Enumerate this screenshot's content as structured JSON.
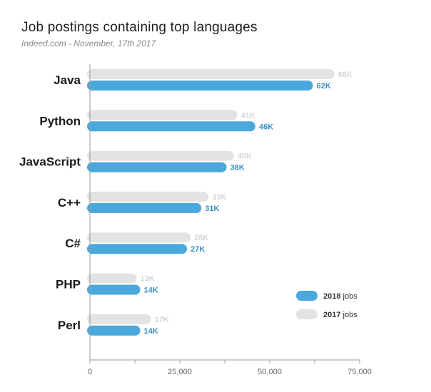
{
  "chart_data": {
    "type": "bar",
    "orientation": "horizontal",
    "title": "Job postings containing top languages",
    "subtitle": "Indeed.com - November, 17th 2017",
    "categories": [
      "Java",
      "Python",
      "JavaScript",
      "C++",
      "C#",
      "PHP",
      "Perl"
    ],
    "series": [
      {
        "name": "2017",
        "suffix": "jobs",
        "color": "#e3e3e3",
        "values": [
          68000,
          41000,
          40000,
          33000,
          28000,
          13000,
          17000
        ],
        "labels": [
          "68K",
          "41K",
          "40K",
          "33K",
          "28K",
          "13K",
          "17K"
        ]
      },
      {
        "name": "2018",
        "suffix": "jobs",
        "color": "#4aa8dc",
        "values": [
          62000,
          46000,
          38000,
          31000,
          27000,
          14000,
          14000
        ],
        "labels": [
          "62K",
          "46K",
          "38K",
          "31K",
          "27K",
          "14K",
          "14K"
        ]
      }
    ],
    "xlim": [
      0,
      75000
    ],
    "xticks": [
      0,
      25000,
      50000,
      75000
    ],
    "xtick_labels": [
      "0",
      "25,000",
      "50,000",
      "75,000"
    ],
    "legend_position": "bottom-right",
    "legend_order": [
      "2018",
      "2017"
    ],
    "grid": false
  }
}
